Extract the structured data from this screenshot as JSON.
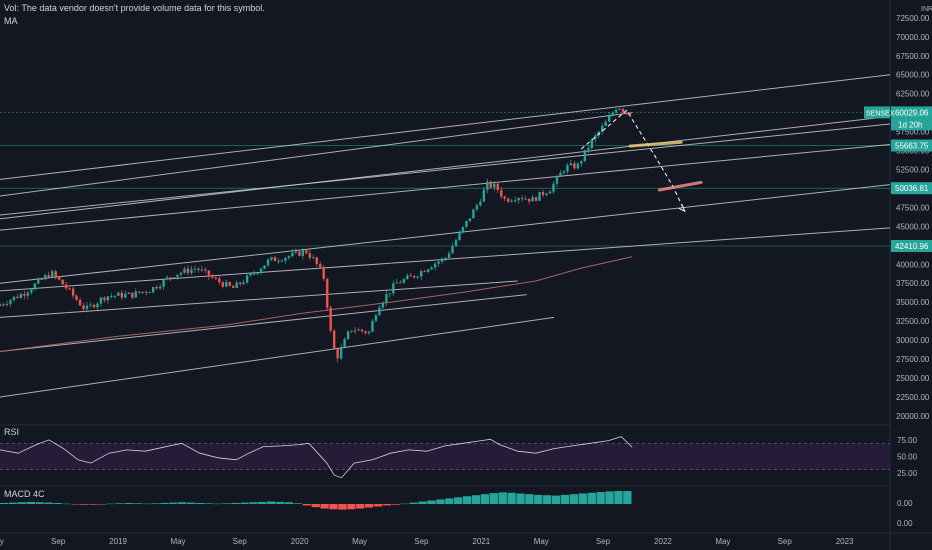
{
  "legend": {
    "vol_notice": "Vol: The data vendor doesn't provide volume data for this symbol.",
    "ma": "MA",
    "rsi": "RSI",
    "macd": "MACD 4C",
    "currency": "INR"
  },
  "colors": {
    "background": "#131722",
    "up": "#26a69a",
    "down": "#ef5350",
    "trendline": "#c9c9c9",
    "ma_line": "#a1665e",
    "rsi_line": "#d1d4dc",
    "rsi_band": "#2a1f3d",
    "badge": "#26a69a"
  },
  "chart_data": {
    "type": "candlestick",
    "price_axis": {
      "ticks": [
        20000,
        22500,
        25000,
        27500,
        30000,
        32500,
        35000,
        37500,
        40000,
        42500,
        45000,
        47500,
        50000,
        52500,
        55000,
        57500,
        60000,
        62500,
        65000,
        67500,
        70000,
        72500
      ],
      "tick_labels": [
        "20000.00",
        "22500.00",
        "25000.00",
        "27500.00",
        "30000.00",
        "32500.00",
        "35000.00",
        "37500.00",
        "40000.00",
        "42500.00",
        "45000.00",
        "47500.00",
        "50000.00",
        "52500.00",
        "55000.00",
        "57500.00",
        "60000.00",
        "62500.00",
        "65000.00",
        "67500.00",
        "70000.00",
        "72500.00"
      ],
      "range": [
        19200,
        73800
      ]
    },
    "time_axis": {
      "labels": [
        "May",
        "Sep",
        "2019",
        "May",
        "Sep",
        "2020",
        "May",
        "Sep",
        "2021",
        "May",
        "Sep",
        "2022",
        "May",
        "Sep",
        "2023"
      ],
      "label_dates": [
        2018.33,
        2018.67,
        2019.0,
        2019.33,
        2019.67,
        2020.0,
        2020.33,
        2020.67,
        2021.0,
        2021.33,
        2021.67,
        2022.0,
        2022.33,
        2022.67,
        2023.0
      ],
      "range": [
        2018.35,
        2023.25
      ]
    },
    "price_path": [
      [
        2018.35,
        34500
      ],
      [
        2018.5,
        36200
      ],
      [
        2018.65,
        38900
      ],
      [
        2018.73,
        37000
      ],
      [
        2018.84,
        34000
      ],
      [
        2018.95,
        35800
      ],
      [
        2019.1,
        36000
      ],
      [
        2019.2,
        36700
      ],
      [
        2019.33,
        38700
      ],
      [
        2019.45,
        39500
      ],
      [
        2019.55,
        38000
      ],
      [
        2019.65,
        36800
      ],
      [
        2019.75,
        38500
      ],
      [
        2019.85,
        40500
      ],
      [
        2020.0,
        41300
      ],
      [
        2020.05,
        41800
      ],
      [
        2020.1,
        40500
      ],
      [
        2020.15,
        38500
      ],
      [
        2020.19,
        31000
      ],
      [
        2020.22,
        27500
      ],
      [
        2020.3,
        31500
      ],
      [
        2020.4,
        31000
      ],
      [
        2020.45,
        34500
      ],
      [
        2020.55,
        37500
      ],
      [
        2020.65,
        38500
      ],
      [
        2020.75,
        40000
      ],
      [
        2020.82,
        40800
      ],
      [
        2020.9,
        44000
      ],
      [
        2021.0,
        48000
      ],
      [
        2021.05,
        50500
      ],
      [
        2021.1,
        50200
      ],
      [
        2021.15,
        48500
      ],
      [
        2021.22,
        49000
      ],
      [
        2021.3,
        48500
      ],
      [
        2021.4,
        50000
      ],
      [
        2021.48,
        52800
      ],
      [
        2021.55,
        53000
      ],
      [
        2021.62,
        56000
      ],
      [
        2021.7,
        58500
      ],
      [
        2021.77,
        61000
      ],
      [
        2021.8,
        60300
      ],
      [
        2021.83,
        60030
      ]
    ],
    "last_price_label": "60029.06",
    "symbol_badge": "SENSEX",
    "countdown_badge": "1d 20h",
    "horizontal_levels": [
      {
        "value": 60029.06,
        "label": "60029.06",
        "dash": true
      },
      {
        "value": 55663.75,
        "label": "55663.75"
      },
      {
        "value": 50036.81,
        "label": "50036.81"
      },
      {
        "value": 42410.96,
        "label": "42410.96"
      }
    ],
    "channel_lines": [
      {
        "from": [
          2018.35,
          51200
        ],
        "to": [
          2023.25,
          65000
        ]
      },
      {
        "from": [
          2018.35,
          49000
        ],
        "to": [
          2021.83,
          60000
        ]
      },
      {
        "from": [
          2018.35,
          46500
        ],
        "to": [
          2023.25,
          58500
        ]
      },
      {
        "from": [
          2018.35,
          46000
        ],
        "to": [
          2023.25,
          59500
        ]
      },
      {
        "from": [
          2018.35,
          44500
        ],
        "to": [
          2023.25,
          55800
        ]
      },
      {
        "from": [
          2018.35,
          37500
        ],
        "to": [
          2023.25,
          50500
        ]
      },
      {
        "from": [
          2018.35,
          36500
        ],
        "to": [
          2023.25,
          44800
        ]
      },
      {
        "from": [
          2018.35,
          33000
        ],
        "to": [
          2021.2,
          37800
        ]
      },
      {
        "from": [
          2018.35,
          28500
        ],
        "to": [
          2021.25,
          36000
        ]
      },
      {
        "from": [
          2018.35,
          22500
        ],
        "to": [
          2021.4,
          33000
        ]
      }
    ],
    "moving_average": [
      [
        2018.35,
        28500
      ],
      [
        2019.0,
        30500
      ],
      [
        2019.6,
        32000
      ],
      [
        2020.0,
        33500
      ],
      [
        2020.5,
        35000
      ],
      [
        2020.9,
        36300
      ],
      [
        2021.3,
        37800
      ],
      [
        2021.55,
        39500
      ],
      [
        2021.83,
        41000
      ]
    ],
    "projection_path": [
      [
        2021.55,
        55200
      ],
      [
        2021.8,
        60300
      ],
      [
        2021.95,
        54500
      ],
      [
        2022.05,
        50500
      ],
      [
        2022.12,
        47000
      ]
    ],
    "projection_marks": [
      {
        "from": [
          2021.82,
          55600
        ],
        "to": [
          2022.1,
          56100
        ]
      },
      {
        "from": [
          2021.98,
          49800
        ],
        "to": [
          2022.21,
          50800
        ]
      }
    ],
    "rsi": {
      "ticks": [
        25,
        50,
        75
      ],
      "tick_labels": [
        "25.00",
        "50.00",
        "75.00"
      ],
      "upper": 70,
      "lower": 30,
      "range": [
        10,
        90
      ],
      "path": [
        [
          2018.35,
          60
        ],
        [
          2018.45,
          55
        ],
        [
          2018.55,
          68
        ],
        [
          2018.62,
          75
        ],
        [
          2018.7,
          62
        ],
        [
          2018.78,
          45
        ],
        [
          2018.85,
          40
        ],
        [
          2018.95,
          55
        ],
        [
          2019.05,
          60
        ],
        [
          2019.15,
          58
        ],
        [
          2019.25,
          64
        ],
        [
          2019.35,
          70
        ],
        [
          2019.45,
          55
        ],
        [
          2019.55,
          48
        ],
        [
          2019.65,
          45
        ],
        [
          2019.72,
          55
        ],
        [
          2019.8,
          65
        ],
        [
          2019.9,
          66
        ],
        [
          2020.0,
          68
        ],
        [
          2020.05,
          70
        ],
        [
          2020.1,
          55
        ],
        [
          2020.15,
          40
        ],
        [
          2020.19,
          22
        ],
        [
          2020.23,
          18
        ],
        [
          2020.3,
          40
        ],
        [
          2020.4,
          45
        ],
        [
          2020.5,
          55
        ],
        [
          2020.6,
          60
        ],
        [
          2020.7,
          58
        ],
        [
          2020.8,
          66
        ],
        [
          2020.9,
          70
        ],
        [
          2021.0,
          74
        ],
        [
          2021.05,
          76
        ],
        [
          2021.1,
          68
        ],
        [
          2021.2,
          58
        ],
        [
          2021.3,
          55
        ],
        [
          2021.4,
          62
        ],
        [
          2021.5,
          66
        ],
        [
          2021.6,
          70
        ],
        [
          2021.7,
          74
        ],
        [
          2021.77,
          80
        ],
        [
          2021.83,
          64
        ]
      ]
    },
    "macd": {
      "tick_labels": [
        "0.00",
        "0.00"
      ],
      "bars_start": 2018.35,
      "bars_end": 2021.83,
      "values": [
        0.3,
        0.4,
        0.5,
        0.6,
        0.5,
        0.4,
        0.3,
        0.1,
        -0.1,
        -0.2,
        -0.2,
        -0.1,
        0.1,
        0.2,
        0.3,
        0.2,
        0.1,
        0.2,
        0.3,
        0.4,
        0.5,
        0.4,
        0.3,
        0.2,
        0.1,
        0.2,
        0.3,
        0.4,
        0.5,
        0.6,
        0.7,
        0.6,
        0.5,
        0.2,
        -0.4,
        -0.9,
        -1.3,
        -1.5,
        -1.6,
        -1.5,
        -1.3,
        -1.0,
        -0.7,
        -0.4,
        -0.2,
        0.1,
        0.4,
        0.7,
        1.0,
        1.3,
        1.6,
        1.9,
        2.2,
        2.5,
        2.8,
        3.1,
        3.3,
        3.2,
        3.0,
        2.8,
        2.6,
        2.5,
        2.4,
        2.6,
        2.8,
        3.0,
        3.2,
        3.4,
        3.6,
        3.7,
        3.7
      ]
    }
  }
}
